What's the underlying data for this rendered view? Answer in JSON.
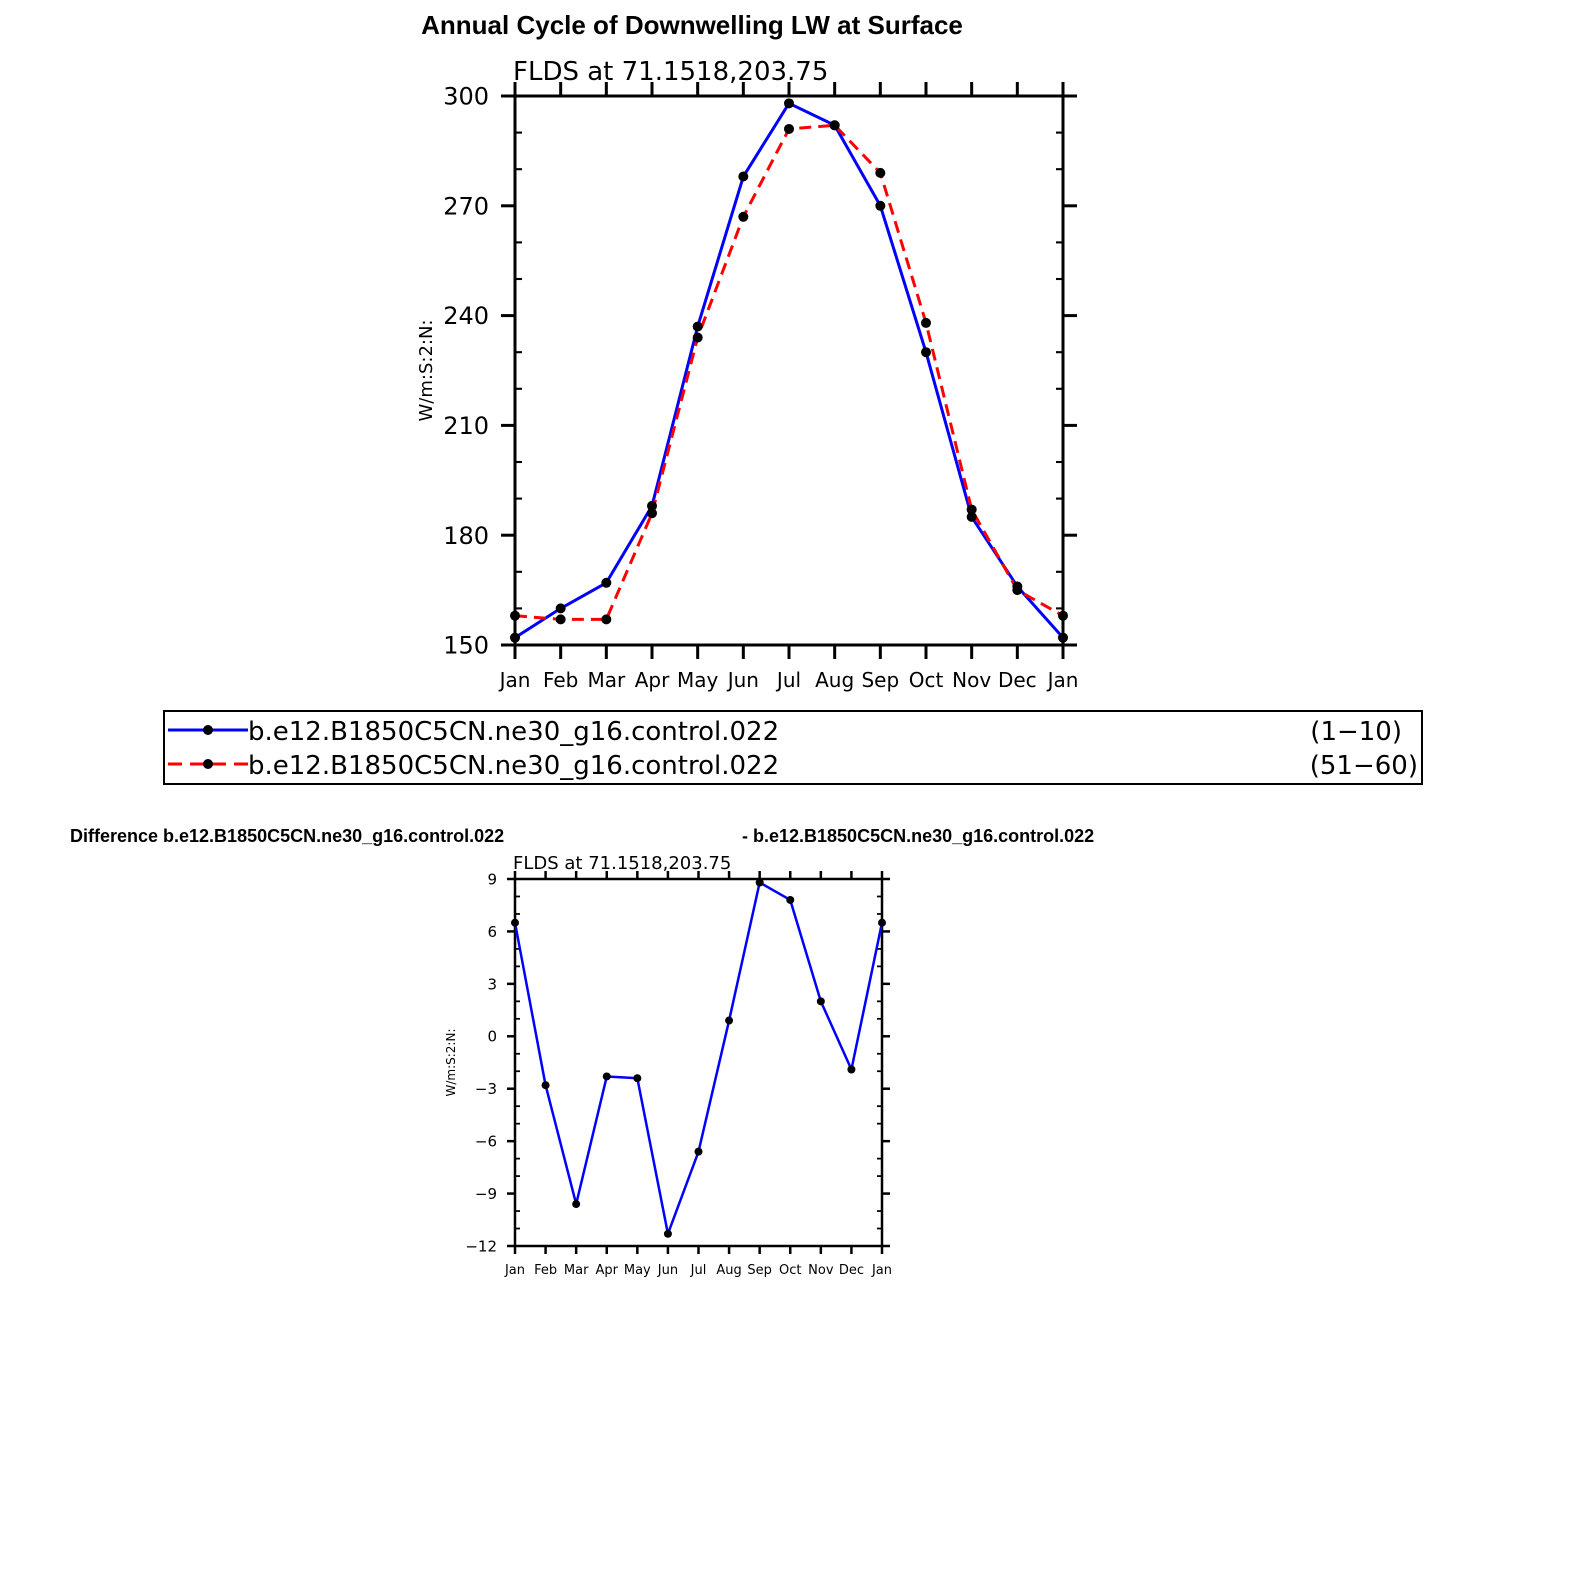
{
  "title": "Annual Cycle of Downwelling LW at Surface",
  "diff_title_left": "Difference b.e12.B1850C5CN.ne30_g16.control.022",
  "diff_title_right": "- b.e12.B1850C5CN.ne30_g16.control.022",
  "colors": {
    "series1": "#0000ff",
    "series2": "#ff0000",
    "axis": "#000000",
    "marker": "#000000"
  },
  "chart_data": [
    {
      "type": "line",
      "subtitle": "FLDS  at  71.1518,203.75",
      "ylabel": "W/m:S:2:N:",
      "xlabel": "",
      "categories": [
        "Jan",
        "Feb",
        "Mar",
        "Apr",
        "May",
        "Jun",
        "Jul",
        "Aug",
        "Sep",
        "Oct",
        "Nov",
        "Dec",
        "Jan"
      ],
      "ylim": [
        150,
        300
      ],
      "yticks": [
        150,
        180,
        210,
        240,
        270,
        300
      ],
      "grid": false,
      "legend_position": "below",
      "series": [
        {
          "name": "b.e12.B1850C5CN.ne30_g16.control.022",
          "period": "(1−10)",
          "line_style": "solid",
          "color": "#0000ff",
          "values": [
            152,
            160,
            167,
            188,
            237,
            278,
            298,
            292,
            270,
            230,
            185,
            166,
            152
          ]
        },
        {
          "name": "b.e12.B1850C5CN.ne30_g16.control.022",
          "period": "(51−60)",
          "line_style": "dashed",
          "color": "#ff0000",
          "values": [
            158,
            157,
            157,
            186,
            234,
            267,
            291,
            292,
            279,
            238,
            187,
            165,
            158
          ]
        }
      ]
    },
    {
      "type": "line",
      "subtitle": "FLDS  at  71.1518,203.75",
      "ylabel": "W/m:S:2:N:",
      "xlabel": "",
      "categories": [
        "Jan",
        "Feb",
        "Mar",
        "Apr",
        "May",
        "Jun",
        "Jul",
        "Aug",
        "Sep",
        "Oct",
        "Nov",
        "Dec",
        "Jan"
      ],
      "ylim": [
        -12,
        9
      ],
      "yticks": [
        -12,
        -9,
        -6,
        -3,
        0,
        3,
        6,
        9
      ],
      "grid": false,
      "series": [
        {
          "line_style": "solid",
          "color": "#0000ff",
          "values": [
            6.5,
            -2.8,
            -9.6,
            -2.3,
            -2.4,
            -11.3,
            -6.6,
            0.9,
            8.8,
            7.8,
            2.0,
            -1.9,
            6.5
          ]
        }
      ]
    }
  ]
}
